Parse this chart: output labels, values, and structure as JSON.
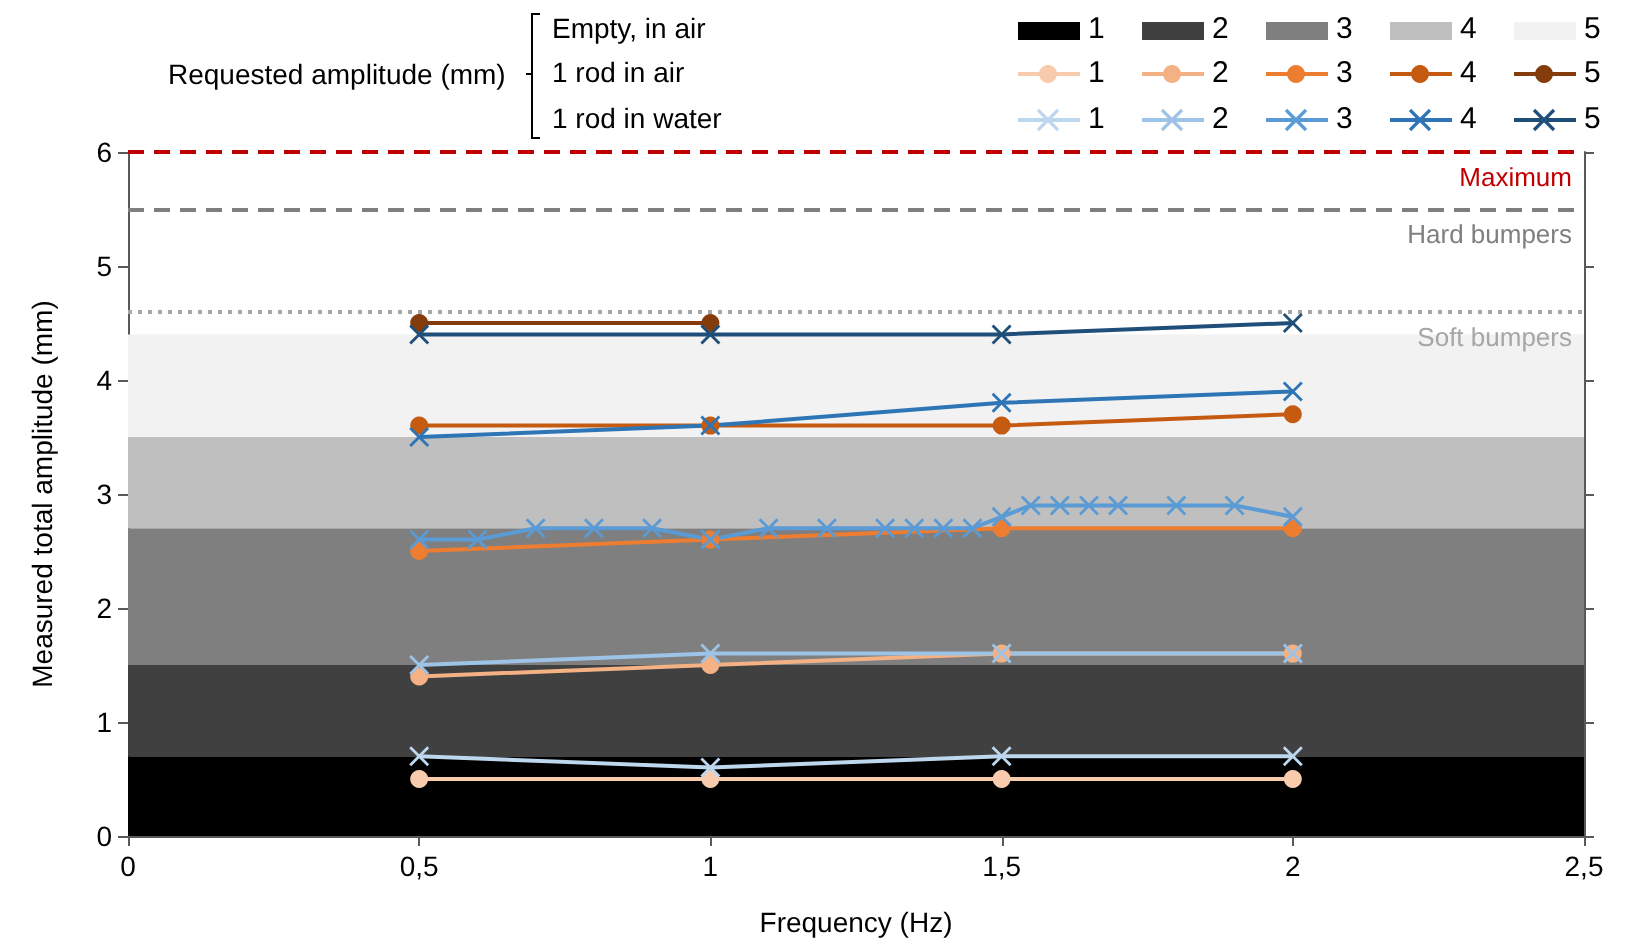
{
  "chart_data": {
    "type": "line",
    "xlabel": "Frequency (Hz)",
    "ylabel": "Measured total amplitude (mm)",
    "legend_title": "Requested amplitude (mm)",
    "annotations": [
      "Empty, in air",
      "1 rod in air",
      "1 rod in water"
    ],
    "x": [
      0.5,
      1,
      1.5,
      2
    ],
    "xlim": [
      0,
      2.5
    ],
    "xticks": [
      0,
      {
        "value": 0.5,
        "label": "0,5"
      },
      1,
      {
        "value": 1.5,
        "label": "1,5"
      },
      2,
      {
        "value": 2.5,
        "label": "2,5"
      }
    ],
    "ylim": [
      0,
      6
    ],
    "yticks": [
      0,
      1,
      2,
      3,
      4,
      5,
      6
    ],
    "grid": false,
    "legend": "top",
    "bands": [
      {
        "axis": "y",
        "from": 0,
        "to": 0.7,
        "label": "1",
        "color": "#000000"
      },
      {
        "axis": "y",
        "from": 0.7,
        "to": 1.5,
        "label": "2",
        "color": "#404040"
      },
      {
        "axis": "y",
        "from": 1.5,
        "to": 2.7,
        "label": "3",
        "color": "#7f7f7f"
      },
      {
        "axis": "y",
        "from": 2.7,
        "to": 3.5,
        "label": "4",
        "color": "#bfbfbf"
      },
      {
        "axis": "y",
        "from": 3.5,
        "to": 4.4,
        "label": "5",
        "color": "#f2f2f2"
      }
    ],
    "ref_lines": [
      {
        "axis": "y",
        "value": 6,
        "label": "Maximum",
        "color": "#c00000",
        "line_style": "dashed"
      },
      {
        "axis": "y",
        "value": 5.5,
        "label": "Hard bumpers",
        "color": "#7f7f7f",
        "line_style": "dashed"
      },
      {
        "axis": "y",
        "value": 4.6,
        "label": "Soft bumpers",
        "color": "#a6a6a6",
        "line_style": "dotted"
      }
    ],
    "series": [
      {
        "name": "1",
        "color": "#f8cbad",
        "marker": "circle",
        "values": [
          0.5,
          0.5,
          0.5,
          0.5
        ]
      },
      {
        "name": "2",
        "color": "#f4b183",
        "marker": "circle",
        "values": [
          1.4,
          1.5,
          1.6,
          1.6
        ]
      },
      {
        "name": "3",
        "color": "#ed7d31",
        "marker": "circle",
        "values": [
          2.5,
          2.6,
          2.7,
          2.7
        ]
      },
      {
        "name": "4",
        "color": "#c55a11",
        "marker": "circle",
        "values": [
          3.6,
          3.6,
          3.6,
          3.7
        ]
      },
      {
        "name": "5",
        "color": "#843c0c",
        "marker": "circle",
        "values": [
          4.5,
          4.5,
          null,
          null
        ]
      },
      {
        "name": "1",
        "color": "#bdd7ee",
        "marker": "cross",
        "values": [
          0.7,
          0.6,
          0.7,
          0.7
        ]
      },
      {
        "name": "2",
        "color": "#9dc3e6",
        "marker": "cross",
        "values": [
          1.5,
          1.6,
          1.6,
          1.6
        ]
      },
      {
        "name": "3",
        "color": "#5b9bd5",
        "marker": "cross",
        "x": [
          0.5,
          0.6,
          0.7,
          0.8,
          0.9,
          1,
          1.1,
          1.2,
          1.3,
          1.35,
          1.4,
          1.45,
          1.5,
          1.55,
          1.6,
          1.65,
          1.7,
          1.8,
          1.9,
          2
        ],
        "values": [
          2.6,
          2.6,
          2.7,
          2.7,
          2.7,
          2.6,
          2.7,
          2.7,
          2.7,
          2.7,
          2.7,
          2.7,
          2.8,
          2.9,
          2.9,
          2.9,
          2.9,
          2.9,
          2.9,
          2.8
        ]
      },
      {
        "name": "4",
        "color": "#2e75b6",
        "marker": "cross",
        "values": [
          3.5,
          3.6,
          3.8,
          3.9
        ]
      },
      {
        "name": "5",
        "color": "#1f4e79",
        "marker": "cross",
        "values": [
          4.4,
          4.4,
          4.4,
          4.5
        ]
      }
    ]
  }
}
